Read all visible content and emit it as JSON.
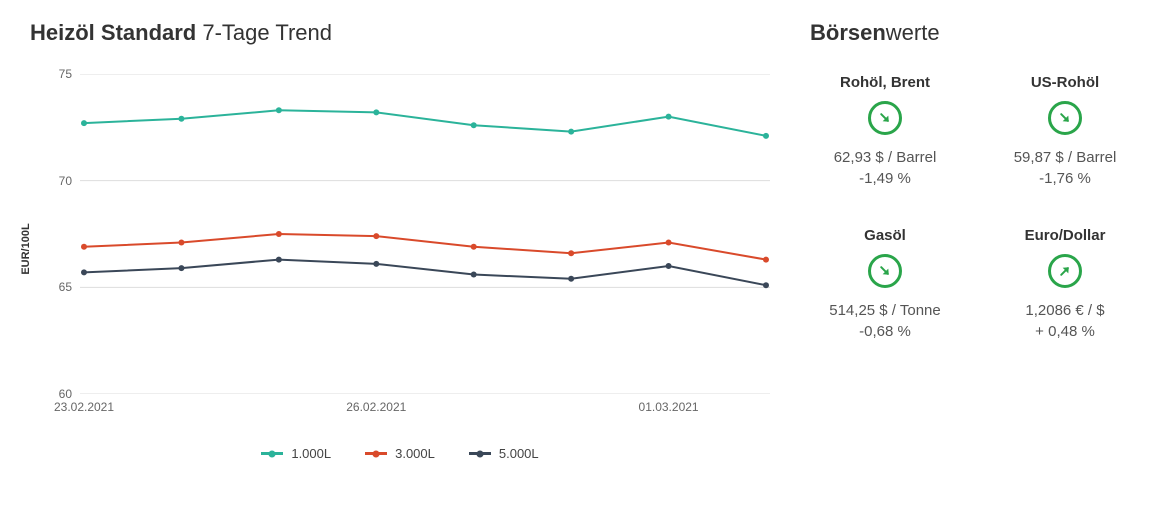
{
  "chart": {
    "title_bold": "Heizöl Standard",
    "title_rest": " 7-Tage Trend",
    "type": "line",
    "y_axis_label": "EUR/100L",
    "ylim": [
      60,
      75
    ],
    "yticks": [
      60,
      65,
      70,
      75
    ],
    "x_count": 8,
    "x_tick_indices": [
      0,
      3,
      6
    ],
    "x_tick_labels": [
      "23.02.2021",
      "26.02.2021",
      "01.03.2021"
    ],
    "gridline_color": "#dddddd",
    "background_color": "#ffffff",
    "axis_text_color": "#666666",
    "line_width": 2,
    "marker_radius": 3,
    "series": [
      {
        "key": "s1",
        "label": "1.000L",
        "color": "#2bb39a",
        "values": [
          72.7,
          72.9,
          73.3,
          73.2,
          72.6,
          72.3,
          73.0,
          72.1
        ]
      },
      {
        "key": "s2",
        "label": "3.000L",
        "color": "#d94a2b",
        "values": [
          66.9,
          67.1,
          67.5,
          67.4,
          66.9,
          66.6,
          67.1,
          66.3
        ]
      },
      {
        "key": "s3",
        "label": "5.000L",
        "color": "#3a4758",
        "values": [
          65.7,
          65.9,
          66.3,
          66.1,
          65.6,
          65.4,
          66.0,
          65.1
        ]
      }
    ]
  },
  "market": {
    "title_bold": "Börsen",
    "title_rest": "werte",
    "up_color": "#2aa54a",
    "down_color": "#2aa54a",
    "items": [
      {
        "name": "Rohöl, Brent",
        "price": "62,93 $ / Barrel",
        "change": "-1,49 %",
        "direction": "down"
      },
      {
        "name": "US-Rohöl",
        "price": "59,87 $ / Barrel",
        "change": "-1,76 %",
        "direction": "down"
      },
      {
        "name": "Gasöl",
        "price": "514,25 $ / Tonne",
        "change": "-0,68 %",
        "direction": "down"
      },
      {
        "name": "Euro/Dollar",
        "price": "1,2086 € / $",
        "change": "+ 0,48 %",
        "direction": "up"
      }
    ]
  }
}
